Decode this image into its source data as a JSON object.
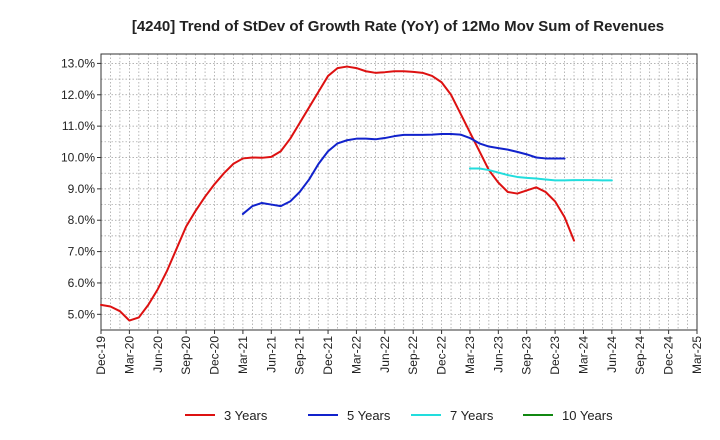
{
  "chart_data": {
    "type": "line",
    "title": "[4240]  Trend of StDev of Growth Rate (YoY) of 12Mo Mov Sum of Revenues",
    "xlabel": "",
    "ylabel": "",
    "ylim": [
      4.5,
      13.3
    ],
    "yticks": [
      5.0,
      6.0,
      7.0,
      8.0,
      9.0,
      10.0,
      11.0,
      12.0,
      13.0
    ],
    "ytick_labels": [
      "5.0%",
      "6.0%",
      "7.0%",
      "8.0%",
      "9.0%",
      "10.0%",
      "11.0%",
      "12.0%",
      "13.0%"
    ],
    "x_start": "Dec-19",
    "x_end": "Mar-25",
    "xtick_labels": [
      "Dec-19",
      "Mar-20",
      "Jun-20",
      "Sep-20",
      "Dec-20",
      "Mar-21",
      "Jun-21",
      "Sep-21",
      "Dec-21",
      "Mar-22",
      "Jun-22",
      "Sep-22",
      "Dec-22",
      "Mar-23",
      "Jun-23",
      "Sep-23",
      "Dec-23",
      "Mar-24",
      "Jun-24",
      "Sep-24",
      "Dec-24",
      "Mar-25"
    ],
    "grid": true,
    "legend_position": "bottom",
    "series": [
      {
        "name": "3 Years",
        "color": "#dd1111",
        "start_index": 0,
        "values": [
          5.3,
          5.25,
          5.1,
          4.8,
          4.9,
          5.3,
          5.8,
          6.4,
          7.1,
          7.8,
          8.3,
          8.75,
          9.15,
          9.5,
          9.8,
          9.97,
          10.0,
          9.99,
          10.02,
          10.2,
          10.6,
          11.1,
          11.6,
          12.1,
          12.6,
          12.85,
          12.9,
          12.85,
          12.75,
          12.7,
          12.72,
          12.75,
          12.75,
          12.73,
          12.7,
          12.6,
          12.4,
          12.0,
          11.4,
          10.8,
          10.2,
          9.6,
          9.2,
          8.9,
          8.85,
          8.95,
          9.05,
          8.9,
          8.6,
          8.1,
          7.35
        ]
      },
      {
        "name": "5 Years",
        "color": "#1122cc",
        "start_index": 15,
        "values": [
          8.2,
          8.45,
          8.55,
          8.5,
          8.45,
          8.6,
          8.9,
          9.3,
          9.8,
          10.2,
          10.45,
          10.55,
          10.6,
          10.6,
          10.58,
          10.62,
          10.68,
          10.72,
          10.72,
          10.72,
          10.73,
          10.75,
          10.75,
          10.73,
          10.62,
          10.45,
          10.35,
          10.3,
          10.25,
          10.18,
          10.1,
          10.0,
          9.97,
          9.97,
          9.97
        ]
      },
      {
        "name": "7 Years",
        "color": "#22dddd",
        "start_index": 39,
        "values": [
          9.65,
          9.65,
          9.6,
          9.52,
          9.44,
          9.38,
          9.35,
          9.33,
          9.3,
          9.27,
          9.27,
          9.28,
          9.28,
          9.28,
          9.27,
          9.27
        ]
      },
      {
        "name": "10 Years",
        "color": "#118811",
        "start_index": 0,
        "values": []
      }
    ]
  }
}
